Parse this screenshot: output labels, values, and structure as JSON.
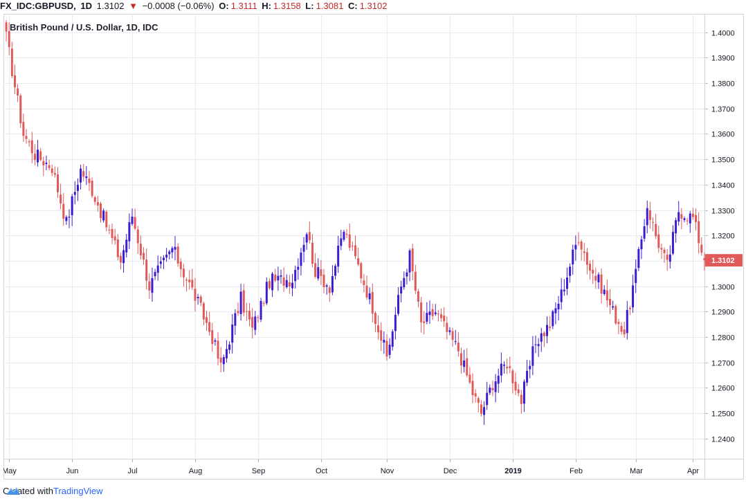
{
  "header": {
    "symbol": "FX_IDC:GBPUSD,",
    "interval": "1D",
    "last": "1.3102",
    "change": "−0.0008 (−0.06%)",
    "o_label": "O:",
    "o_value": "1.3111",
    "h_label": "H:",
    "h_value": "1.3158",
    "l_label": "L:",
    "l_value": "1.3081",
    "c_label": "C:",
    "c_value": "1.3102",
    "down_icon": "triangle-down-icon"
  },
  "footer": {
    "created_with": "Created with",
    "brand": "TradingView"
  },
  "colors": {
    "up": "#3d1ccf",
    "down": "#e05a5a",
    "grid": "#e8ecf1",
    "price_tag": "#e05a5a"
  },
  "chart_data": {
    "type": "candlestick",
    "title": "British Pound / U.S. Dollar, 1D, IDC",
    "last_price_label": "1.3102",
    "ylim": [
      1.232,
      1.4073
    ],
    "y_ticks": [
      1.24,
      1.25,
      1.26,
      1.27,
      1.28,
      1.29,
      1.3,
      1.31,
      1.32,
      1.33,
      1.34,
      1.35,
      1.36,
      1.37,
      1.38,
      1.39,
      1.4
    ],
    "y_tick_labels": [
      "1.2400",
      "1.2500",
      "1.2600",
      "1.2700",
      "1.2800",
      "1.2900",
      "1.3000",
      "1.3100",
      "1.3200",
      "1.3300",
      "1.3400",
      "1.3500",
      "1.3600",
      "1.3700",
      "1.3800",
      "1.3900",
      "1.4000"
    ],
    "x_labels": [
      "May",
      "Jun",
      "Jul",
      "Aug",
      "Sep",
      "Oct",
      "Nov",
      "Dec",
      "2019",
      "Feb",
      "Mar",
      "Apr"
    ],
    "x_label_bold": [
      false,
      false,
      false,
      false,
      false,
      false,
      false,
      false,
      true,
      false,
      false,
      false
    ],
    "x_label_index": [
      1,
      23,
      44,
      66,
      88,
      110,
      133,
      155,
      177,
      199,
      220,
      240
    ],
    "grid": true,
    "anchors": [
      [
        0,
        1.398
      ],
      [
        6,
        1.36
      ],
      [
        10,
        1.352
      ],
      [
        16,
        1.347
      ],
      [
        21,
        1.325
      ],
      [
        26,
        1.346
      ],
      [
        30,
        1.338
      ],
      [
        40,
        1.31
      ],
      [
        44,
        1.328
      ],
      [
        50,
        1.3
      ],
      [
        58,
        1.315
      ],
      [
        66,
        1.296
      ],
      [
        72,
        1.28
      ],
      [
        75,
        1.268
      ],
      [
        82,
        1.295
      ],
      [
        86,
        1.283
      ],
      [
        92,
        1.302
      ],
      [
        100,
        1.303
      ],
      [
        105,
        1.322
      ],
      [
        108,
        1.306
      ],
      [
        113,
        1.3
      ],
      [
        118,
        1.322
      ],
      [
        123,
        1.308
      ],
      [
        128,
        1.292
      ],
      [
        133,
        1.272
      ],
      [
        138,
        1.3
      ],
      [
        141,
        1.312
      ],
      [
        145,
        1.285
      ],
      [
        150,
        1.29
      ],
      [
        155,
        1.28
      ],
      [
        158,
        1.275
      ],
      [
        163,
        1.258
      ],
      [
        166,
        1.25
      ],
      [
        170,
        1.262
      ],
      [
        175,
        1.27
      ],
      [
        180,
        1.255
      ],
      [
        185,
        1.278
      ],
      [
        190,
        1.285
      ],
      [
        194,
        1.297
      ],
      [
        200,
        1.32
      ],
      [
        204,
        1.307
      ],
      [
        208,
        1.3
      ],
      [
        212,
        1.29
      ],
      [
        216,
        1.282
      ],
      [
        220,
        1.305
      ],
      [
        224,
        1.332
      ],
      [
        227,
        1.32
      ],
      [
        231,
        1.308
      ],
      [
        235,
        1.33
      ],
      [
        240,
        1.327
      ],
      [
        244,
        1.3102
      ]
    ]
  }
}
